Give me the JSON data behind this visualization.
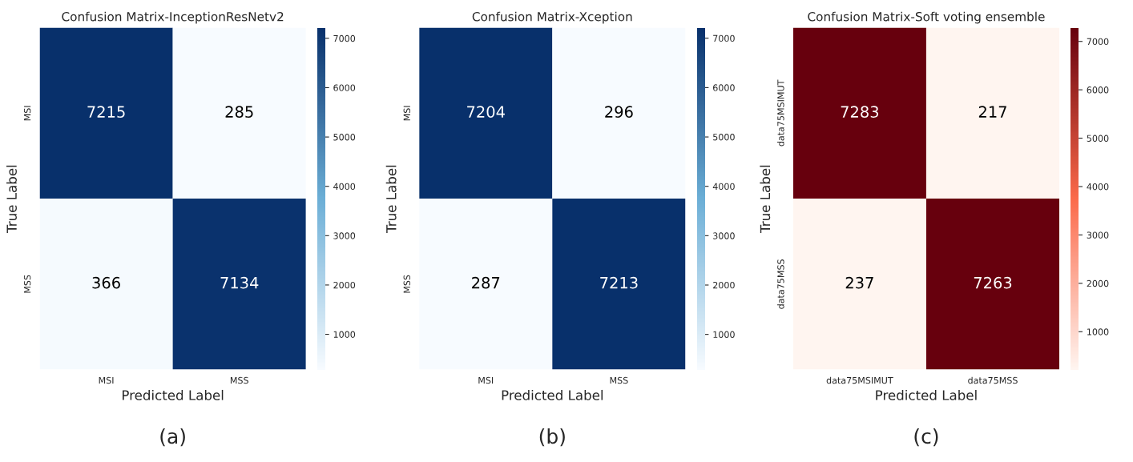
{
  "chart_data": [
    {
      "type": "heatmap",
      "title": "Confusion Matrix-InceptionResNetv2",
      "xlabel": "Predicted Label",
      "ylabel": "True Label",
      "categories": [
        "MSI",
        "MSS"
      ],
      "y_categories": [
        "MSI",
        "MSS"
      ],
      "cells": [
        [
          7215,
          285
        ],
        [
          366,
          7134
        ]
      ],
      "data_labels": true,
      "clim": [
        285,
        7215
      ],
      "cticks": [
        1000,
        2000,
        3000,
        4000,
        5000,
        6000,
        7000
      ],
      "colors": [
        "#f7fbff",
        "#6baed6",
        "#08306b"
      ],
      "annotations": [
        "(a)"
      ]
    },
    {
      "type": "heatmap",
      "title": "Confusion Matrix-Xception",
      "xlabel": "Predicted Label",
      "ylabel": "True Label",
      "categories": [
        "MSI",
        "MSS"
      ],
      "y_categories": [
        "MSI",
        "MSS"
      ],
      "cells": [
        [
          7204,
          296
        ],
        [
          287,
          7213
        ]
      ],
      "data_labels": true,
      "clim": [
        287,
        7213
      ],
      "cticks": [
        1000,
        2000,
        3000,
        4000,
        5000,
        6000,
        7000
      ],
      "colors": [
        "#f7fbff",
        "#6baed6",
        "#08306b"
      ],
      "annotations": [
        "(b)"
      ]
    },
    {
      "type": "heatmap",
      "title": "Confusion Matrix-Soft voting ensemble",
      "xlabel": "Predicted Label",
      "ylabel": "True Label",
      "categories": [
        "data75MSIMUT",
        "data75MSS"
      ],
      "y_categories": [
        "data75MSIMUT",
        "data75MSS"
      ],
      "cells": [
        [
          7283,
          217
        ],
        [
          237,
          7263
        ]
      ],
      "data_labels": true,
      "clim": [
        217,
        7283
      ],
      "cticks": [
        1000,
        2000,
        3000,
        4000,
        5000,
        6000,
        7000
      ],
      "colors": [
        "#fff5f0",
        "#fb6a4a",
        "#67000d"
      ],
      "annotations": [
        "(c)"
      ]
    }
  ]
}
